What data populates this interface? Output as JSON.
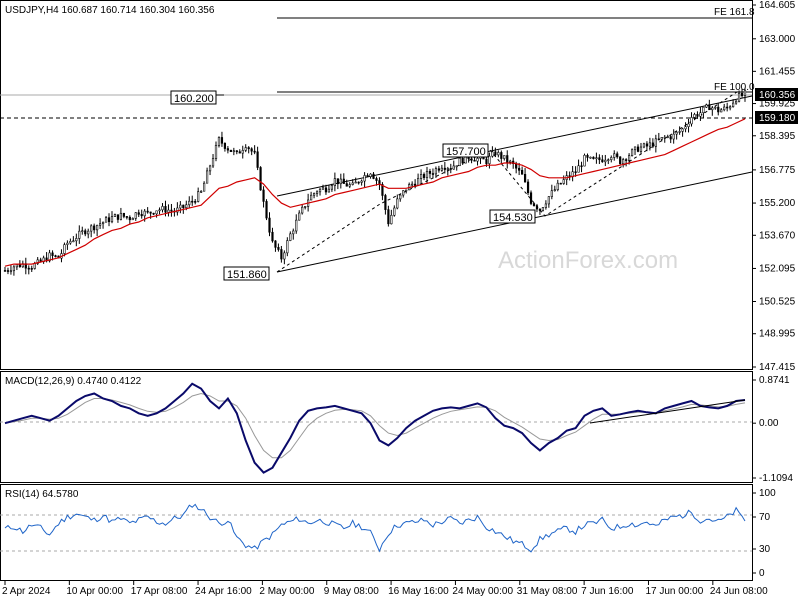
{
  "chart_data": {
    "type": "candlestick",
    "main": {
      "header": "USDJPY,H4  160.687 160.714 160.304 160.356",
      "symbol": "USDJPY,H4",
      "ohlc": {
        "open": 160.687,
        "high": 160.714,
        "low": 160.304,
        "close": 160.356
      },
      "yticks": [
        "164.605",
        "163.000",
        "161.455",
        "159.925",
        "158.395",
        "156.775",
        "155.200",
        "153.670",
        "152.095",
        "150.525",
        "148.995",
        "147.415"
      ],
      "ylim": [
        147.415,
        164.605
      ],
      "last_price": "160.356",
      "level_price": "159.180",
      "fib_labels": [
        "FE 161.8",
        "FE 100.0"
      ],
      "annotations": [
        {
          "text": "160.200",
          "value": 160.2
        },
        {
          "text": "151.860",
          "value": 151.86
        },
        {
          "text": "157.700",
          "value": 157.7
        },
        {
          "text": "154.530",
          "value": 154.53
        }
      ],
      "watermark": "ActionForex.com",
      "close_series": [
        152.0,
        152.2,
        152.3,
        152.2,
        152.4,
        152.7,
        152.6,
        153.3,
        153.6,
        153.9,
        154.1,
        154.3,
        154.5,
        154.6,
        154.5,
        154.8,
        154.7,
        154.9,
        154.9,
        154.8,
        155.0,
        155.3,
        155.7,
        157.0,
        158.2,
        157.8,
        157.5,
        158.0,
        157.5,
        155.2,
        153.3,
        152.6,
        153.7,
        154.6,
        155.4,
        155.8,
        155.9,
        156.3,
        156.1,
        156.0,
        156.4,
        156.7,
        156.1,
        154.3,
        155.3,
        155.9,
        156.2,
        156.5,
        156.7,
        157.0,
        156.9,
        157.2,
        157.4,
        157.3,
        157.2,
        157.6,
        157.3,
        157.0,
        156.5,
        155.3,
        154.9,
        155.5,
        156.0,
        156.4,
        156.7,
        157.3,
        157.2,
        157.3,
        157.5,
        157.2,
        157.5,
        157.8,
        157.9,
        158.1,
        158.3,
        158.4,
        158.7,
        159.3,
        159.5,
        159.8,
        159.6,
        159.7,
        160.2,
        160.36
      ],
      "ma_series": [
        152.2,
        152.3,
        152.3,
        152.3,
        152.4,
        152.5,
        152.6,
        152.8,
        153.0,
        153.2,
        153.5,
        153.7,
        153.9,
        154.0,
        154.2,
        154.3,
        154.5,
        154.6,
        154.7,
        154.8,
        154.9,
        155.0,
        155.1,
        155.5,
        155.9,
        156.0,
        156.2,
        156.3,
        156.4,
        156.1,
        155.6,
        155.2,
        155.0,
        155.1,
        155.2,
        155.3,
        155.4,
        155.6,
        155.7,
        155.8,
        155.9,
        156.0,
        156.1,
        155.9,
        155.9,
        155.9,
        156.0,
        156.1,
        156.2,
        156.4,
        156.5,
        156.6,
        156.7,
        156.9,
        157.0,
        157.0,
        157.1,
        157.1,
        157.0,
        156.8,
        156.5,
        156.4,
        156.4,
        156.4,
        156.5,
        156.6,
        156.7,
        156.8,
        156.9,
        157.0,
        157.1,
        157.2,
        157.3,
        157.4,
        157.5,
        157.7,
        157.9,
        158.1,
        158.3,
        158.5,
        158.7,
        158.8,
        159.0,
        159.2
      ]
    },
    "macd": {
      "header": "MACD(12,26,9) 0.4740 0.4122",
      "yticks": [
        "0.8741",
        "0.00",
        "-1.1094"
      ],
      "ylim": [
        -1.1094,
        0.8741
      ],
      "values": [
        0.0,
        0.05,
        0.1,
        0.15,
        0.1,
        0.05,
        0.15,
        0.3,
        0.45,
        0.55,
        0.6,
        0.5,
        0.45,
        0.35,
        0.3,
        0.2,
        0.15,
        0.2,
        0.3,
        0.45,
        0.6,
        0.8,
        0.7,
        0.45,
        0.3,
        0.5,
        0.2,
        -0.35,
        -0.8,
        -1.0,
        -0.9,
        -0.6,
        -0.3,
        0.05,
        0.25,
        0.3,
        0.32,
        0.35,
        0.3,
        0.25,
        0.2,
        0.0,
        -0.35,
        -0.45,
        -0.3,
        -0.1,
        0.05,
        0.15,
        0.25,
        0.3,
        0.32,
        0.3,
        0.35,
        0.4,
        0.32,
        0.1,
        -0.05,
        -0.1,
        -0.2,
        -0.4,
        -0.55,
        -0.4,
        -0.3,
        -0.15,
        -0.1,
        0.15,
        0.25,
        0.3,
        0.15,
        0.18,
        0.22,
        0.25,
        0.22,
        0.2,
        0.3,
        0.35,
        0.4,
        0.45,
        0.35,
        0.32,
        0.3,
        0.35,
        0.45,
        0.47
      ],
      "signal": [
        0.0,
        0.03,
        0.06,
        0.1,
        0.1,
        0.08,
        0.1,
        0.18,
        0.3,
        0.42,
        0.5,
        0.5,
        0.47,
        0.42,
        0.37,
        0.3,
        0.24,
        0.22,
        0.24,
        0.32,
        0.42,
        0.55,
        0.6,
        0.55,
        0.45,
        0.45,
        0.35,
        0.1,
        -0.25,
        -0.55,
        -0.7,
        -0.7,
        -0.55,
        -0.3,
        -0.05,
        0.1,
        0.2,
        0.26,
        0.28,
        0.27,
        0.25,
        0.15,
        -0.05,
        -0.2,
        -0.25,
        -0.2,
        -0.1,
        0.0,
        0.1,
        0.18,
        0.24,
        0.27,
        0.3,
        0.33,
        0.32,
        0.25,
        0.12,
        0.02,
        -0.08,
        -0.2,
        -0.32,
        -0.35,
        -0.33,
        -0.25,
        -0.18,
        -0.05,
        0.08,
        0.18,
        0.18,
        0.18,
        0.2,
        0.22,
        0.22,
        0.21,
        0.25,
        0.29,
        0.33,
        0.38,
        0.37,
        0.35,
        0.33,
        0.34,
        0.38,
        0.41
      ]
    },
    "rsi": {
      "header": "RSI(14) 64.5780",
      "yticks": [
        "100",
        "70",
        "30",
        "0"
      ],
      "ylim": [
        0,
        100
      ],
      "values": [
        55,
        58,
        52,
        60,
        56,
        48,
        62,
        70,
        74,
        70,
        66,
        72,
        64,
        68,
        62,
        66,
        70,
        64,
        62,
        68,
        72,
        86,
        80,
        70,
        62,
        66,
        44,
        35,
        30,
        40,
        48,
        60,
        64,
        68,
        62,
        66,
        64,
        60,
        56,
        62,
        58,
        50,
        30,
        50,
        60,
        62,
        64,
        66,
        60,
        64,
        68,
        62,
        66,
        70,
        58,
        52,
        46,
        40,
        36,
        30,
        42,
        48,
        52,
        56,
        52,
        60,
        62,
        66,
        56,
        58,
        62,
        60,
        64,
        58,
        66,
        70,
        72,
        76,
        66,
        68,
        64,
        70,
        78,
        65
      ]
    },
    "xticks": [
      "2 Apr 2024",
      "10 Apr 00:00",
      "17 Apr 08:00",
      "24 Apr 16:00",
      "2 May 00:00",
      "9 May 08:00",
      "16 May 16:00",
      "24 May 00:00",
      "31 May 08:00",
      "7 Jun 16:00",
      "17 Jun 00:00",
      "24 Jun 08:00"
    ]
  }
}
